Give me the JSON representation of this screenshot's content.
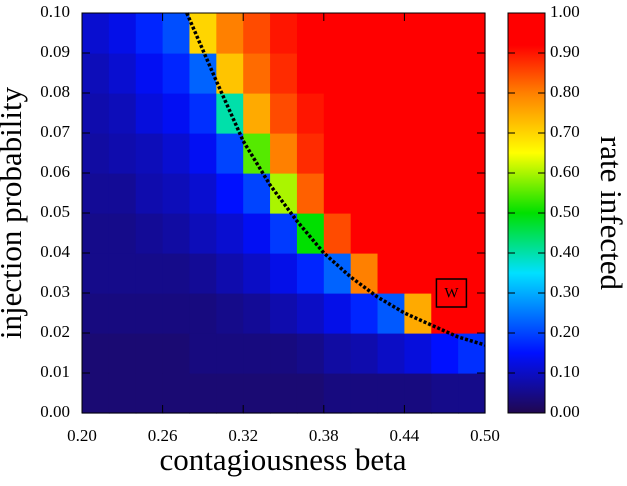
{
  "chart_data": {
    "type": "heatmap",
    "x_label": "contagiousness beta",
    "y_label": "injection probability",
    "colorbar_label": "rate infected",
    "x": [
      0.21,
      0.23,
      0.25,
      0.27,
      0.29,
      0.31,
      0.33,
      0.35,
      0.37,
      0.39,
      0.41,
      0.43,
      0.45,
      0.47,
      0.49
    ],
    "y": [
      0.005,
      0.015,
      0.025,
      0.035,
      0.045,
      0.055,
      0.065,
      0.075,
      0.085,
      0.095
    ],
    "z": [
      [
        0.03,
        0.03,
        0.03,
        0.03,
        0.03,
        0.03,
        0.03,
        0.03,
        0.03,
        0.04,
        0.04,
        0.04,
        0.04,
        0.05,
        0.05
      ],
      [
        0.03,
        0.03,
        0.03,
        0.03,
        0.04,
        0.04,
        0.04,
        0.04,
        0.05,
        0.07,
        0.08,
        0.1,
        0.12,
        0.15,
        0.18
      ],
      [
        0.04,
        0.04,
        0.04,
        0.04,
        0.04,
        0.05,
        0.06,
        0.08,
        0.1,
        0.13,
        0.17,
        0.22,
        0.75,
        0.95,
        0.99
      ],
      [
        0.05,
        0.05,
        0.05,
        0.05,
        0.06,
        0.08,
        0.1,
        0.13,
        0.17,
        0.23,
        0.8,
        0.95,
        0.99,
        1.0,
        1.0
      ],
      [
        0.05,
        0.05,
        0.06,
        0.07,
        0.09,
        0.11,
        0.14,
        0.19,
        0.5,
        0.85,
        0.95,
        0.99,
        1.0,
        1.0,
        1.0
      ],
      [
        0.06,
        0.06,
        0.08,
        0.09,
        0.11,
        0.15,
        0.2,
        0.6,
        0.83,
        0.93,
        0.98,
        1.0,
        1.0,
        1.0,
        1.0
      ],
      [
        0.07,
        0.08,
        0.09,
        0.11,
        0.14,
        0.2,
        0.55,
        0.8,
        0.88,
        0.95,
        0.99,
        1.0,
        1.0,
        1.0,
        1.0
      ],
      [
        0.08,
        0.09,
        0.12,
        0.14,
        0.18,
        0.4,
        0.75,
        0.85,
        0.9,
        0.96,
        1.0,
        1.0,
        1.0,
        1.0,
        1.0
      ],
      [
        0.09,
        0.11,
        0.14,
        0.17,
        0.23,
        0.72,
        0.82,
        0.88,
        0.92,
        0.97,
        1.0,
        1.0,
        1.0,
        1.0,
        1.0
      ],
      [
        0.11,
        0.13,
        0.17,
        0.21,
        0.7,
        0.8,
        0.85,
        0.9,
        0.93,
        0.97,
        1.0,
        1.0,
        1.0,
        1.0,
        1.0
      ]
    ],
    "xlim": [
      0.2,
      0.5
    ],
    "ylim": [
      0,
      0.1
    ],
    "zlim": [
      0,
      1
    ],
    "xticks": [
      {
        "value": 0.2,
        "label": "0.20"
      },
      {
        "value": 0.26,
        "label": "0.26"
      },
      {
        "value": 0.32,
        "label": "0.32"
      },
      {
        "value": 0.38,
        "label": "0.38"
      },
      {
        "value": 0.44,
        "label": "0.44"
      },
      {
        "value": 0.5,
        "label": "0.50"
      }
    ],
    "yticks": [
      {
        "value": 0,
        "label": "0.00"
      },
      {
        "value": 0.01,
        "label": "0.01"
      },
      {
        "value": 0.02,
        "label": "0.02"
      },
      {
        "value": 0.03,
        "label": "0.03"
      },
      {
        "value": 0.04,
        "label": "0.04"
      },
      {
        "value": 0.05,
        "label": "0.05"
      },
      {
        "value": 0.06,
        "label": "0.06"
      },
      {
        "value": 0.07,
        "label": "0.07"
      },
      {
        "value": 0.08,
        "label": "0.08"
      },
      {
        "value": 0.09,
        "label": "0.09"
      },
      {
        "value": 0.1,
        "label": "0.10"
      }
    ],
    "zticks": [
      {
        "value": 0,
        "label": "0.00"
      },
      {
        "value": 0.1,
        "label": "0.10"
      },
      {
        "value": 0.2,
        "label": "0.20"
      },
      {
        "value": 0.3,
        "label": "0.30"
      },
      {
        "value": 0.4,
        "label": "0.40"
      },
      {
        "value": 0.5,
        "label": "0.50"
      },
      {
        "value": 0.6,
        "label": "0.60"
      },
      {
        "value": 0.7,
        "label": "0.70"
      },
      {
        "value": 0.8,
        "label": "0.80"
      },
      {
        "value": 0.9,
        "label": "0.90"
      },
      {
        "value": 1,
        "label": "1.00"
      }
    ],
    "colorscale": [
      [
        0,
        "#200850"
      ],
      [
        0.15,
        "#0010ff"
      ],
      [
        0.35,
        "#00e0ff"
      ],
      [
        0.5,
        "#00e000"
      ],
      [
        0.65,
        "#ffff00"
      ],
      [
        0.8,
        "#ff8000"
      ],
      [
        0.92,
        "#ff0000"
      ],
      [
        1,
        "#ff0000"
      ]
    ],
    "critical_line": {
      "color": "#000000",
      "x": [
        0.278,
        0.3,
        0.32,
        0.34,
        0.36,
        0.38,
        0.4,
        0.42,
        0.44,
        0.46,
        0.48,
        0.5
      ],
      "y": [
        0.1,
        0.083,
        0.068,
        0.057,
        0.048,
        0.04,
        0.034,
        0.029,
        0.025,
        0.022,
        0.019,
        0.017
      ]
    },
    "annotation": {
      "text": "W",
      "x": 0.475,
      "y": 0.03
    }
  }
}
